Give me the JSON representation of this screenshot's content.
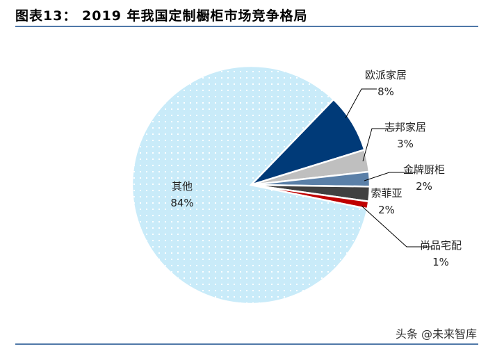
{
  "title": "图表13：  2019 年我国定制橱柜市场竞争格局",
  "watermark": "头条 @未来智库",
  "chart_data": {
    "type": "pie",
    "title": "2019 年我国定制橱柜市场竞争格局",
    "categories": [
      "欧派家居",
      "志邦家居",
      "金牌厨柜",
      "索菲亚",
      "尚品宅配",
      "其他"
    ],
    "values": [
      8,
      3,
      2,
      2,
      1,
      84
    ],
    "labels": [
      "8%",
      "3%",
      "2%",
      "2%",
      "1%",
      "84%"
    ],
    "colors": [
      "#003A78",
      "#BFBFBF",
      "#5B80A8",
      "#404040",
      "#C00000",
      "#C9EBF9"
    ],
    "legend": "none"
  }
}
